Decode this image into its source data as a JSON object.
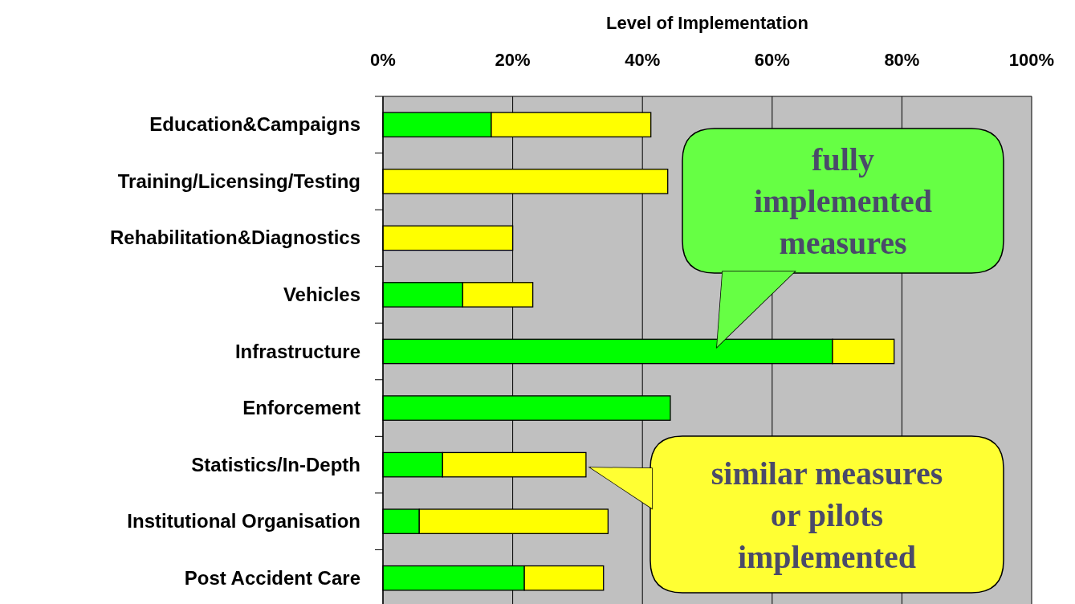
{
  "chart_data": {
    "type": "bar",
    "orientation": "horizontal",
    "stacked": true,
    "title": "Level of Implementation",
    "categories": [
      "Education&Campaigns",
      "Training/Licensing/Testing",
      "Rehabilitation&Diagnostics",
      "Vehicles",
      "Infrastructure",
      "Enforcement",
      "Statistics/In-Depth",
      "Institutional Organisation",
      "Post Accident Care"
    ],
    "series": [
      {
        "color": "#00ff00",
        "values": [
          16.7,
          0,
          0,
          12.3,
          69.3,
          44.3,
          9.2,
          5.6,
          21.8
        ]
      },
      {
        "color": "#ffff00",
        "values": [
          24.6,
          43.9,
          20.0,
          10.8,
          9.5,
          0,
          22.1,
          29.1,
          12.2
        ]
      }
    ],
    "xlim": [
      0,
      100
    ],
    "xticks": [
      {
        "value": 0,
        "label": "0%"
      },
      {
        "value": 20,
        "label": "20%"
      },
      {
        "value": 40,
        "label": "40%"
      },
      {
        "value": 60,
        "label": "60%"
      },
      {
        "value": 80,
        "label": "80%"
      },
      {
        "value": 100,
        "label": "100%"
      }
    ],
    "grid": "x",
    "annotations": [
      "fully implemented measures",
      "similar measures or pilots implemented"
    ]
  }
}
